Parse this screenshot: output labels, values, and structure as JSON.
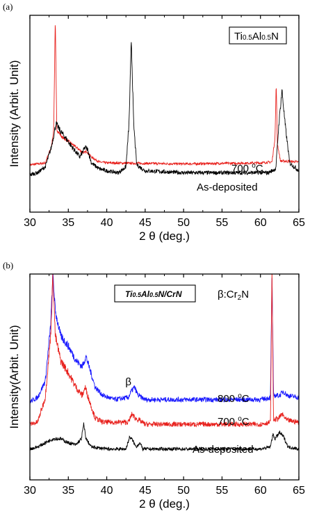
{
  "chart_data": [
    {
      "panel_label": "(a)",
      "type": "line",
      "xlabel": "2 θ (deg.)",
      "ylabel": "Intensity (Arbit. Unit)",
      "xlim": [
        30,
        65
      ],
      "xticks": [
        30,
        35,
        40,
        45,
        50,
        55,
        60,
        65
      ],
      "legend_box": {
        "base": "Ti",
        "sub1": "0.5",
        "mid": "Al",
        "sub2": "0.5",
        "end": "N"
      },
      "series": [
        {
          "name": "700 °C",
          "label_prefix": "700 ",
          "label_sup": "o",
          "label_suffix": "C",
          "color": "#e8211d",
          "baseline": 0.245,
          "noise": 0.006,
          "points": [
            [
              30,
              0.24
            ],
            [
              32,
              0.25
            ],
            [
              32.8,
              0.33
            ],
            [
              33.1,
              0.42
            ],
            [
              33.3,
              0.99
            ],
            [
              33.5,
              0.42
            ],
            [
              34.2,
              0.38
            ],
            [
              35,
              0.36
            ],
            [
              36,
              0.33
            ],
            [
              37,
              0.3
            ],
            [
              37.4,
              0.31
            ],
            [
              38,
              0.28
            ],
            [
              39,
              0.255
            ],
            [
              40,
              0.25
            ],
            [
              50,
              0.245
            ],
            [
              60,
              0.25
            ],
            [
              61.5,
              0.255
            ],
            [
              61.9,
              0.38
            ],
            [
              62.05,
              0.66
            ],
            [
              62.2,
              0.35
            ],
            [
              62.6,
              0.26
            ],
            [
              65,
              0.255
            ]
          ]
        },
        {
          "name": "As-deposited",
          "label_prefix": "As-deposited",
          "label_sup": "",
          "label_suffix": "",
          "color": "#000000",
          "baseline": 0.205,
          "noise": 0.01,
          "points": [
            [
              30,
              0.19
            ],
            [
              31,
              0.2
            ],
            [
              32,
              0.23
            ],
            [
              32.8,
              0.33
            ],
            [
              33.4,
              0.45
            ],
            [
              34,
              0.41
            ],
            [
              34.6,
              0.38
            ],
            [
              35.5,
              0.33
            ],
            [
              36.5,
              0.28
            ],
            [
              37.2,
              0.33
            ],
            [
              37.5,
              0.32
            ],
            [
              38,
              0.25
            ],
            [
              39,
              0.22
            ],
            [
              40,
              0.21
            ],
            [
              41.5,
              0.2
            ],
            [
              42.5,
              0.23
            ],
            [
              42.9,
              0.45
            ],
            [
              43.2,
              0.88
            ],
            [
              43.5,
              0.45
            ],
            [
              43.9,
              0.24
            ],
            [
              45,
              0.21
            ],
            [
              50,
              0.2
            ],
            [
              60,
              0.2
            ],
            [
              61,
              0.2
            ],
            [
              62,
              0.22
            ],
            [
              62.4,
              0.45
            ],
            [
              62.8,
              0.62
            ],
            [
              63.2,
              0.45
            ],
            [
              63.8,
              0.25
            ],
            [
              65,
              0.21
            ]
          ]
        }
      ]
    },
    {
      "panel_label": "(b)",
      "type": "line",
      "xlabel": "2 θ (deg.)",
      "ylabel": "Intensity(Arbit. Unit)",
      "xlim": [
        30,
        65
      ],
      "xticks": [
        30,
        35,
        40,
        45,
        50,
        55,
        60,
        65
      ],
      "xtick_labels": [
        "30",
        "35",
        "40",
        "45",
        "50",
        "55",
        "60",
        "65"
      ],
      "legend_box": {
        "base": "Ti",
        "sub1": "0.5",
        "mid": "Al",
        "sub2": "0.5",
        "end": "N/CrN"
      },
      "phase_note": {
        "symbol": "β",
        "text": ":Cr",
        "sub": "2",
        "end": "N"
      },
      "annotations": [
        {
          "text": "β",
          "x": 43
        }
      ],
      "series": [
        {
          "name": "800 °C",
          "label_prefix": "800 ",
          "label_sup": "o",
          "label_suffix": "C",
          "color": "#1a1aff",
          "baseline": 0.39,
          "noise": 0.012,
          "points": [
            [
              30,
              0.38
            ],
            [
              31,
              0.4
            ],
            [
              32,
              0.48
            ],
            [
              32.7,
              0.75
            ],
            [
              33.0,
              1.0
            ],
            [
              33.3,
              0.82
            ],
            [
              34,
              0.7
            ],
            [
              35,
              0.65
            ],
            [
              36,
              0.58
            ],
            [
              36.8,
              0.55
            ],
            [
              37.3,
              0.6
            ],
            [
              37.7,
              0.55
            ],
            [
              38.5,
              0.45
            ],
            [
              39.5,
              0.41
            ],
            [
              41,
              0.39
            ],
            [
              42.8,
              0.4
            ],
            [
              43.2,
              0.43
            ],
            [
              43.6,
              0.45
            ],
            [
              44.1,
              0.41
            ],
            [
              45,
              0.39
            ],
            [
              50,
              0.39
            ],
            [
              60,
              0.39
            ],
            [
              61.3,
              0.4
            ],
            [
              61.5,
              1.0
            ],
            [
              61.7,
              0.41
            ],
            [
              62.5,
              0.41
            ],
            [
              63,
              0.43
            ],
            [
              63.5,
              0.41
            ],
            [
              65,
              0.4
            ]
          ]
        },
        {
          "name": "700 °C",
          "label_prefix": "700 ",
          "label_sup": "o",
          "label_suffix": "C",
          "color": "#e8211d",
          "baseline": 0.27,
          "noise": 0.012,
          "points": [
            [
              30,
              0.27
            ],
            [
              31,
              0.28
            ],
            [
              32,
              0.4
            ],
            [
              32.7,
              0.7
            ],
            [
              33.0,
              1.0
            ],
            [
              33.3,
              0.7
            ],
            [
              34,
              0.58
            ],
            [
              35,
              0.52
            ],
            [
              36,
              0.45
            ],
            [
              36.8,
              0.41
            ],
            [
              37.2,
              0.45
            ],
            [
              37.6,
              0.4
            ],
            [
              38.5,
              0.3
            ],
            [
              39.5,
              0.28
            ],
            [
              42.8,
              0.28
            ],
            [
              43.3,
              0.32
            ],
            [
              43.7,
              0.3
            ],
            [
              44.2,
              0.29
            ],
            [
              45,
              0.27
            ],
            [
              50,
              0.27
            ],
            [
              60,
              0.27
            ],
            [
              61.3,
              0.28
            ],
            [
              61.5,
              1.0
            ],
            [
              61.7,
              0.29
            ],
            [
              62.4,
              0.3
            ],
            [
              62.8,
              0.32
            ],
            [
              63.4,
              0.29
            ],
            [
              65,
              0.28
            ]
          ]
        },
        {
          "name": "As-deposited",
          "label_prefix": "As-deposited",
          "label_sup": "",
          "label_suffix": "",
          "color": "#000000",
          "baseline": 0.15,
          "noise": 0.008,
          "points": [
            [
              30,
              0.15
            ],
            [
              31,
              0.16
            ],
            [
              32,
              0.18
            ],
            [
              33,
              0.2
            ],
            [
              34,
              0.2
            ],
            [
              35,
              0.18
            ],
            [
              36,
              0.17
            ],
            [
              36.7,
              0.2
            ],
            [
              37.0,
              0.27
            ],
            [
              37.3,
              0.2
            ],
            [
              38,
              0.16
            ],
            [
              40,
              0.15
            ],
            [
              42.5,
              0.15
            ],
            [
              43.0,
              0.21
            ],
            [
              43.4,
              0.19
            ],
            [
              43.8,
              0.16
            ],
            [
              44.3,
              0.18
            ],
            [
              44.7,
              0.15
            ],
            [
              46,
              0.15
            ],
            [
              50,
              0.15
            ],
            [
              60,
              0.15
            ],
            [
              61.3,
              0.16
            ],
            [
              61.6,
              0.22
            ],
            [
              61.9,
              0.2
            ],
            [
              62.5,
              0.23
            ],
            [
              63,
              0.21
            ],
            [
              63.6,
              0.16
            ],
            [
              65,
              0.15
            ]
          ]
        }
      ]
    }
  ]
}
